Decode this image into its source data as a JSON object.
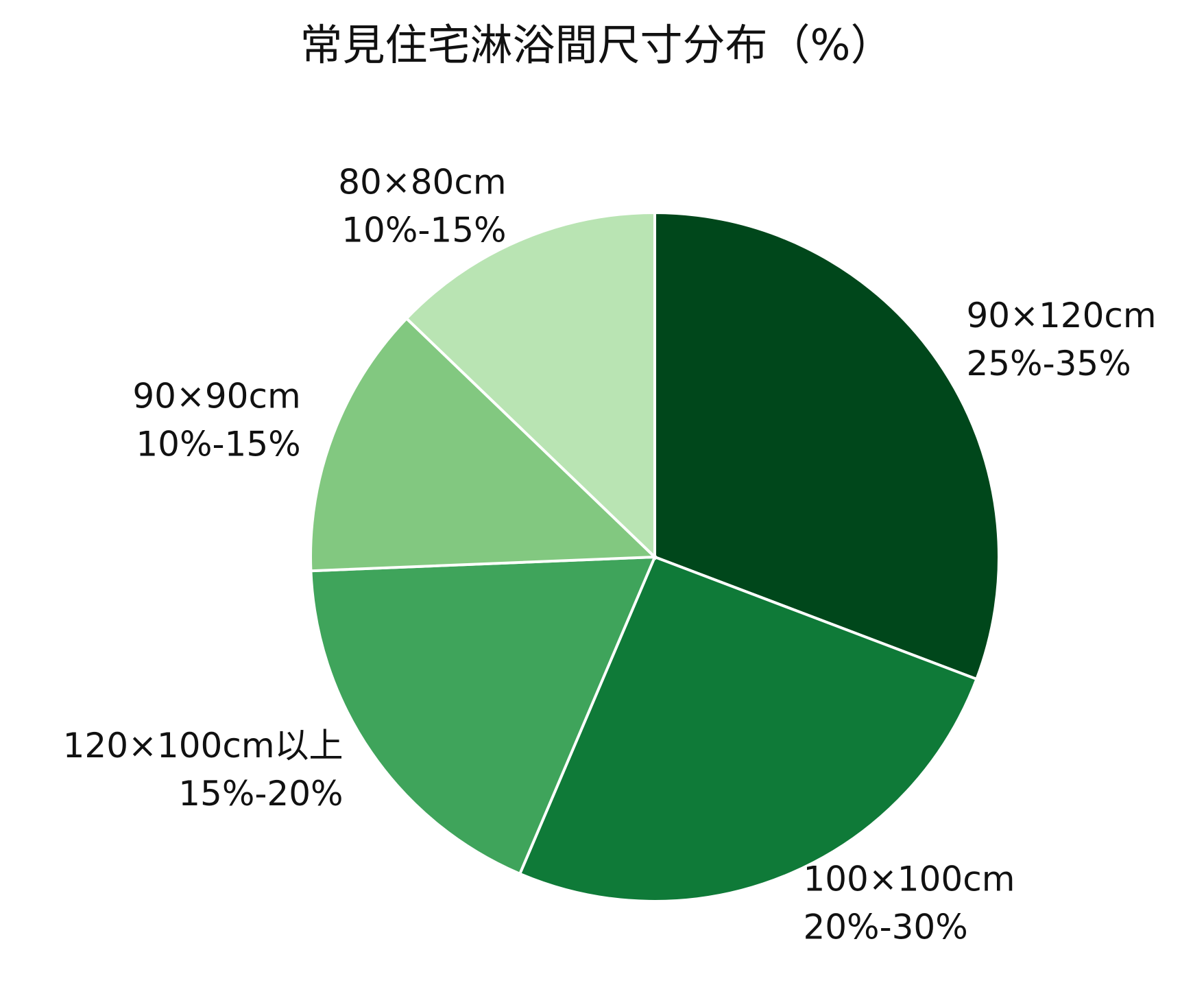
{
  "chart_data": {
    "type": "pie",
    "title": "常見住宅淋浴間尺寸分布（%）",
    "categories": [
      "90×120cm",
      "100×100cm",
      "120×100cm以上",
      "90×90cm",
      "80×80cm"
    ],
    "values": [
      30,
      25,
      17.5,
      12.5,
      12.5
    ],
    "value_labels": [
      "25%-35%",
      "20%-30%",
      "15%-20%",
      "10%-15%",
      "10%-15%"
    ],
    "colors": [
      "#00471b",
      "#0f7a38",
      "#3fa45b",
      "#82c880",
      "#b9e4b3"
    ]
  }
}
